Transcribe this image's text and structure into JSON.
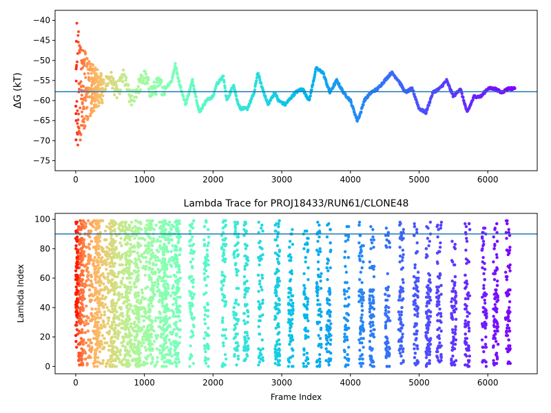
{
  "chart_data": [
    {
      "type": "scatter",
      "title": "",
      "xlabel": "",
      "ylabel": "ΔG (kT)",
      "xlim": [
        -300,
        6720
      ],
      "ylim": [
        -77.5,
        -37.5
      ],
      "xticks": [
        0,
        1000,
        2000,
        3000,
        4000,
        5000,
        6000
      ],
      "yticks": [
        -75,
        -70,
        -65,
        -60,
        -55,
        -50,
        -45,
        -40
      ],
      "hline": -57.8,
      "hline_color": "#1f77b4",
      "colormap": "rainbow (high frame index = violet, low = red)",
      "x_max": 6400,
      "grid": false,
      "trace_points": [
        [
          200,
          -58
        ],
        [
          300,
          -55
        ],
        [
          400,
          -57
        ],
        [
          500,
          -54
        ],
        [
          600,
          -58
        ],
        [
          700,
          -54
        ],
        [
          800,
          -60
        ],
        [
          900,
          -57
        ],
        [
          1000,
          -54
        ],
        [
          1100,
          -58
        ],
        [
          1200,
          -56
        ],
        [
          1300,
          -57
        ],
        [
          1400,
          -55
        ],
        [
          1450,
          -51
        ],
        [
          1500,
          -55
        ],
        [
          1550,
          -58
        ],
        [
          1600,
          -61
        ],
        [
          1700,
          -55
        ],
        [
          1800,
          -63
        ],
        [
          1900,
          -60
        ],
        [
          2000,
          -59
        ],
        [
          2050,
          -56
        ],
        [
          2150,
          -54
        ],
        [
          2200,
          -60
        ],
        [
          2300,
          -56
        ],
        [
          2350,
          -60
        ],
        [
          2400,
          -62
        ],
        [
          2500,
          -62
        ],
        [
          2600,
          -58
        ],
        [
          2650,
          -53
        ],
        [
          2700,
          -56
        ],
        [
          2800,
          -61
        ],
        [
          2900,
          -58
        ],
        [
          2950,
          -60
        ],
        [
          3050,
          -61
        ],
        [
          3200,
          -58
        ],
        [
          3300,
          -57
        ],
        [
          3400,
          -60
        ],
        [
          3500,
          -52
        ],
        [
          3600,
          -53
        ],
        [
          3700,
          -58
        ],
        [
          3800,
          -55
        ],
        [
          3900,
          -58
        ],
        [
          4000,
          -60
        ],
        [
          4100,
          -65
        ],
        [
          4150,
          -63
        ],
        [
          4200,
          -60
        ],
        [
          4300,
          -58
        ],
        [
          4400,
          -57
        ],
        [
          4500,
          -55
        ],
        [
          4600,
          -53
        ],
        [
          4700,
          -55
        ],
        [
          4800,
          -58
        ],
        [
          4900,
          -57
        ],
        [
          5000,
          -62
        ],
        [
          5100,
          -63
        ],
        [
          5200,
          -58
        ],
        [
          5300,
          -57
        ],
        [
          5400,
          -55
        ],
        [
          5500,
          -59
        ],
        [
          5600,
          -57
        ],
        [
          5700,
          -63
        ],
        [
          5800,
          -59
        ],
        [
          5900,
          -59
        ],
        [
          6000,
          -57
        ],
        [
          6100,
          -57
        ],
        [
          6200,
          -58
        ],
        [
          6300,
          -57
        ],
        [
          6400,
          -57
        ]
      ]
    },
    {
      "type": "scatter",
      "title": "Lambda Trace for PROJ18433/RUN61/CLONE48",
      "xlabel": "Frame Index",
      "ylabel": "Lambda Index",
      "xlim": [
        -300,
        6720
      ],
      "ylim": [
        -5,
        104
      ],
      "xticks": [
        0,
        1000,
        2000,
        3000,
        4000,
        5000,
        6000
      ],
      "yticks": [
        0,
        20,
        40,
        60,
        80,
        100
      ],
      "hline": 90,
      "hline_color": "#1f77b4",
      "colormap": "rainbow (high frame index = violet, low = red)",
      "x_max": 6400,
      "lambda_min": 0,
      "lambda_max": 99,
      "grid": false
    }
  ]
}
